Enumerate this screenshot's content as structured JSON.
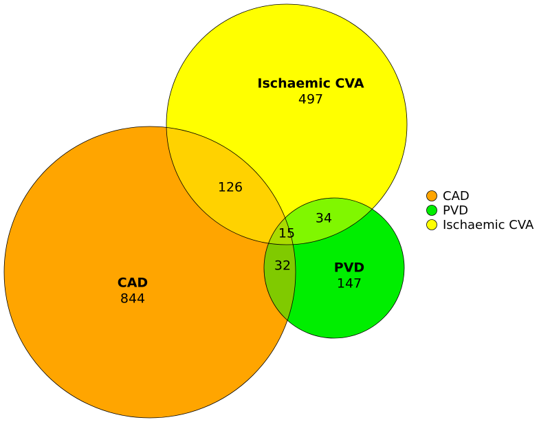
{
  "chart_data": {
    "type": "venn",
    "sets": [
      {
        "name": "CAD",
        "color": "#ffa500",
        "value": 844
      },
      {
        "name": "PVD",
        "color": "#00ee00",
        "value": 147
      },
      {
        "name": "Ischaemic CVA",
        "color": "#ffff00",
        "value": 497
      }
    ],
    "intersections": [
      {
        "sets": [
          0,
          2
        ],
        "value": 126
      },
      {
        "sets": [
          0,
          1
        ],
        "value": 32
      },
      {
        "sets": [
          1,
          2
        ],
        "value": 34
      },
      {
        "sets": [
          0,
          1,
          2
        ],
        "value": 15
      }
    ],
    "legend": "right"
  }
}
